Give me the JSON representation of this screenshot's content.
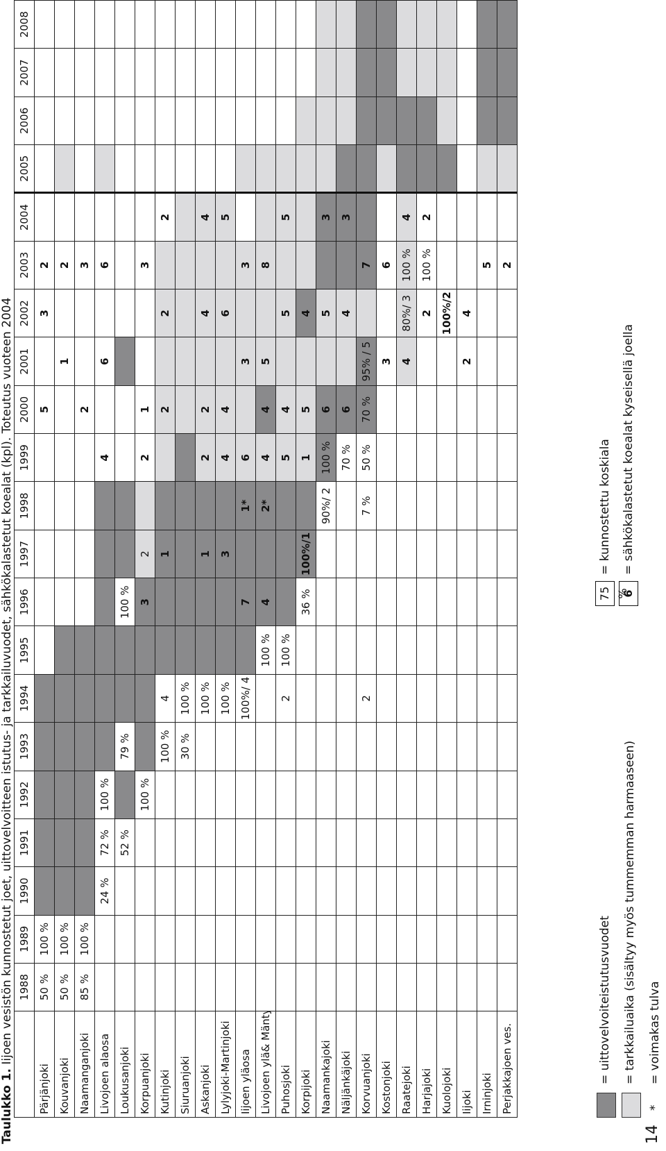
{
  "page_number": "14",
  "caption": {
    "label": "Taulukko 1.",
    "text": " Iijoen vesistön kunnostetut joet, uittovelvoitteen istutus- ja tarkkailuvuodet, sähkökalastetut koealat (kpl). Toteutus vuoteen 2004"
  },
  "table": {
    "years": [
      "1988",
      "1989",
      "1990",
      "1991",
      "1992",
      "1993",
      "1994",
      "1995",
      "1996",
      "1997",
      "1998",
      "1999",
      "2000",
      "2001",
      "2002",
      "2003",
      "2004",
      "2005",
      "2006",
      "2007",
      "2008"
    ],
    "rows": [
      {
        "name": "Pärjänjoki",
        "cells": [
          {
            "v": "50 %"
          },
          {
            "v": "100 %"
          },
          {
            "f": "u"
          },
          {
            "f": "u"
          },
          {
            "f": "u"
          },
          {
            "f": "u"
          },
          {
            "f": "u"
          },
          {},
          {},
          {},
          {},
          {},
          {
            "v": "5",
            "b": 1
          },
          {},
          {
            "v": "3",
            "b": 1
          },
          {
            "v": "2",
            "b": 1
          },
          {},
          {},
          {},
          {},
          {}
        ]
      },
      {
        "name": "Kouvanjoki",
        "cells": [
          {
            "v": "50 %"
          },
          {
            "v": "100 %"
          },
          {
            "f": "u"
          },
          {
            "f": "u"
          },
          {
            "f": "u"
          },
          {
            "f": "u"
          },
          {
            "f": "u"
          },
          {
            "f": "u"
          },
          {},
          {},
          {},
          {},
          {},
          {
            "v": "1",
            "b": 1
          },
          {},
          {
            "v": "2",
            "b": 1
          },
          {},
          {
            "f": "t"
          },
          {},
          {},
          {}
        ]
      },
      {
        "name": "Naamanganjoki",
        "cells": [
          {
            "v": "85 %"
          },
          {
            "v": "100 %"
          },
          {
            "f": "u"
          },
          {
            "f": "u"
          },
          {
            "f": "u"
          },
          {
            "f": "u"
          },
          {
            "f": "u"
          },
          {
            "f": "u"
          },
          {},
          {},
          {},
          {},
          {
            "v": "2",
            "b": 1
          },
          {},
          {},
          {
            "v": "3",
            "b": 1
          },
          {},
          {},
          {},
          {},
          {}
        ]
      },
      {
        "name": "Livojoen alaosa",
        "cells": [
          {},
          {},
          {
            "v": "24 %"
          },
          {
            "v": "72 %"
          },
          {
            "v": "100 %"
          },
          {
            "f": "u"
          },
          {
            "f": "u"
          },
          {
            "f": "u"
          },
          {
            "f": "u"
          },
          {
            "f": "u"
          },
          {
            "f": "u"
          },
          {
            "v": "4",
            "b": 1
          },
          {},
          {
            "v": "6",
            "b": 1
          },
          {},
          {
            "v": "6",
            "b": 1
          },
          {},
          {
            "f": "t"
          },
          {},
          {},
          {}
        ]
      },
      {
        "name": "Loukusanjoki",
        "cells": [
          {},
          {},
          {},
          {
            "v": "52 %"
          },
          {
            "f": "u"
          },
          {
            "v": "79 %"
          },
          {
            "f": "u"
          },
          {
            "f": "u"
          },
          {
            "v": "100 %"
          },
          {
            "f": "u"
          },
          {
            "f": "u"
          },
          {},
          {},
          {
            "f": "u"
          },
          {},
          {},
          {},
          {},
          {},
          {},
          {}
        ]
      },
      {
        "name": "Korpuanjoki",
        "cells": [
          {},
          {},
          {},
          {},
          {
            "v": "100 %"
          },
          {
            "f": "u"
          },
          {
            "f": "u"
          },
          {
            "f": "u"
          },
          {
            "v": "3",
            "b": 1,
            "f": "u"
          },
          {
            "v": "2",
            "f": "t"
          },
          {
            "f": "t"
          },
          {
            "v": "2",
            "b": 1
          },
          {
            "v": "1",
            "b": 1
          },
          {},
          {},
          {
            "v": "3",
            "b": 1
          },
          {},
          {},
          {},
          {},
          {}
        ]
      },
      {
        "name": "Kutinjoki",
        "cells": [
          {},
          {},
          {},
          {},
          {},
          {
            "v": "100 %"
          },
          {
            "v": "4"
          },
          {
            "f": "u"
          },
          {
            "f": "u"
          },
          {
            "v": "1",
            "b": 1,
            "f": "u"
          },
          {
            "f": "u"
          },
          {
            "f": "t"
          },
          {
            "v": "2",
            "b": 1,
            "f": "t"
          },
          {
            "f": "t"
          },
          {
            "v": "2",
            "b": 1,
            "f": "t"
          },
          {
            "f": "t"
          },
          {
            "v": "2",
            "b": 1
          },
          {},
          {},
          {},
          {}
        ]
      },
      {
        "name": "Siuruanjoki",
        "cells": [
          {},
          {},
          {},
          {},
          {},
          {
            "v": "30 %"
          },
          {
            "v": "100 %"
          },
          {
            "f": "u"
          },
          {
            "f": "u"
          },
          {
            "f": "u"
          },
          {
            "f": "u"
          },
          {
            "f": "u"
          },
          {
            "f": "t"
          },
          {
            "f": "t"
          },
          {
            "f": "t"
          },
          {
            "f": "t"
          },
          {
            "f": "t"
          },
          {},
          {},
          {},
          {}
        ]
      },
      {
        "name": "Askanjoki",
        "cells": [
          {},
          {},
          {},
          {},
          {},
          {},
          {
            "v": "100 %"
          },
          {
            "f": "u"
          },
          {
            "f": "u"
          },
          {
            "v": "1",
            "b": 1,
            "f": "u"
          },
          {
            "f": "u"
          },
          {
            "v": "2",
            "b": 1,
            "f": "t"
          },
          {
            "v": "2",
            "b": 1,
            "f": "t"
          },
          {
            "f": "t"
          },
          {
            "v": "4",
            "b": 1,
            "f": "t"
          },
          {
            "f": "t"
          },
          {
            "v": "4",
            "b": 1,
            "f": "t"
          },
          {},
          {},
          {},
          {}
        ]
      },
      {
        "name": "Lylyjoki-Martinjoki",
        "cells": [
          {},
          {},
          {},
          {},
          {},
          {},
          {
            "v": "100 %"
          },
          {
            "f": "u"
          },
          {
            "f": "u"
          },
          {
            "v": "3",
            "b": 1,
            "f": "u"
          },
          {
            "f": "u"
          },
          {
            "v": "4",
            "b": 1,
            "f": "t"
          },
          {
            "v": "4",
            "b": 1,
            "f": "t"
          },
          {
            "f": "t"
          },
          {
            "v": "6",
            "b": 1,
            "f": "t"
          },
          {
            "f": "t"
          },
          {
            "v": "5",
            "b": 1,
            "f": "t"
          },
          {},
          {},
          {},
          {}
        ]
      },
      {
        "name": "Iijoen yläosa",
        "cells": [
          {},
          {},
          {},
          {},
          {},
          {},
          {
            "v": "100%/ 4"
          },
          {
            "f": "u"
          },
          {
            "v": "7",
            "b": 1,
            "f": "u"
          },
          {
            "f": "u"
          },
          {
            "v": "1*",
            "b": 1,
            "f": "u"
          },
          {
            "v": "6",
            "b": 1,
            "f": "t"
          },
          {
            "f": "t"
          },
          {
            "v": "3",
            "b": 1,
            "f": "t"
          },
          {
            "f": "t"
          },
          {
            "v": "3",
            "b": 1,
            "f": "t"
          },
          {},
          {
            "f": "t"
          },
          {},
          {},
          {}
        ]
      },
      {
        "name": "Livojoen ylä& Mäntyjoki",
        "cells": [
          {},
          {},
          {},
          {},
          {},
          {},
          {},
          {
            "v": "100 %"
          },
          {
            "v": "4",
            "b": 1,
            "f": "u"
          },
          {
            "f": "u"
          },
          {
            "v": "2*",
            "b": 1,
            "f": "u"
          },
          {
            "v": "4",
            "b": 1,
            "f": "t"
          },
          {
            "v": "4",
            "b": 1,
            "f": "u"
          },
          {
            "v": "5",
            "b": 1,
            "f": "t"
          },
          {
            "f": "t"
          },
          {
            "v": "8",
            "b": 1,
            "f": "t"
          },
          {
            "f": "t"
          },
          {
            "f": "t"
          },
          {},
          {},
          {}
        ]
      },
      {
        "name": "Puhosjoki",
        "cells": [
          {},
          {},
          {},
          {},
          {},
          {},
          {
            "v": "2"
          },
          {
            "v": "100 %"
          },
          {
            "f": "u"
          },
          {
            "f": "u"
          },
          {
            "f": "u"
          },
          {
            "v": "5",
            "b": 1,
            "f": "t"
          },
          {
            "v": "4",
            "b": 1,
            "f": "t"
          },
          {
            "f": "t"
          },
          {
            "v": "5",
            "b": 1,
            "f": "t"
          },
          {
            "f": "t"
          },
          {
            "v": "5",
            "b": 1,
            "f": "t"
          },
          {
            "f": "t"
          },
          {},
          {},
          {}
        ]
      },
      {
        "name": "Korpijoki",
        "cells": [
          {},
          {},
          {},
          {},
          {},
          {},
          {},
          {},
          {
            "v": "36 %"
          },
          {
            "v": "100%/1",
            "b": 1,
            "f": "u"
          },
          {
            "f": "u"
          },
          {
            "v": "1",
            "b": 1,
            "f": "t"
          },
          {
            "v": "5",
            "b": 1,
            "f": "t"
          },
          {
            "f": "t"
          },
          {
            "v": "4",
            "b": 1,
            "f": "u"
          },
          {
            "f": "t"
          },
          {
            "f": "t"
          },
          {
            "f": "t"
          },
          {
            "f": "t"
          },
          {},
          {}
        ]
      },
      {
        "name": "Naamankajoki",
        "cells": [
          {},
          {},
          {},
          {},
          {},
          {},
          {},
          {},
          {},
          {},
          {
            "v": "90%/ 2"
          },
          {
            "v": "100 %",
            "f": "u"
          },
          {
            "v": "6",
            "b": 1,
            "f": "u"
          },
          {
            "f": "t"
          },
          {
            "v": "5",
            "b": 1,
            "f": "t"
          },
          {
            "f": "u"
          },
          {
            "v": "3",
            "b": 1,
            "f": "u"
          },
          {
            "f": "t"
          },
          {
            "f": "t"
          },
          {
            "f": "t"
          },
          {
            "f": "t"
          }
        ]
      },
      {
        "name": "Näljänkäjoki",
        "cells": [
          {},
          {},
          {},
          {},
          {},
          {},
          {},
          {},
          {},
          {},
          {},
          {
            "v": "70 %"
          },
          {
            "v": "6",
            "b": 1,
            "f": "u"
          },
          {
            "f": "t"
          },
          {
            "v": "4",
            "b": 1,
            "f": "t"
          },
          {
            "f": "u"
          },
          {
            "v": "3",
            "b": 1,
            "f": "u"
          },
          {
            "f": "u"
          },
          {
            "f": "t"
          },
          {
            "f": "t"
          },
          {
            "f": "t"
          }
        ]
      },
      {
        "name": "Korvuanjoki",
        "cells": [
          {},
          {},
          {},
          {},
          {},
          {},
          {
            "v": "2"
          },
          {},
          {},
          {},
          {
            "v": "7 %"
          },
          {
            "v": "50 %"
          },
          {
            "v": "70 %",
            "f": "u"
          },
          {
            "v": "95% / 5",
            "f": "u"
          },
          {
            "f": "t"
          },
          {
            "v": "7",
            "b": 1,
            "f": "u"
          },
          {
            "f": "u"
          },
          {
            "f": "u"
          },
          {
            "f": "u"
          },
          {
            "f": "u"
          },
          {
            "f": "u"
          }
        ]
      },
      {
        "name": "Kostonjoki",
        "cells": [
          {},
          {},
          {},
          {},
          {},
          {},
          {},
          {},
          {},
          {},
          {},
          {},
          {},
          {
            "v": "3",
            "b": 1
          },
          {},
          {
            "v": "6",
            "b": 1
          },
          {},
          {
            "f": "t"
          },
          {
            "f": "u"
          },
          {
            "f": "u"
          },
          {
            "f": "u"
          }
        ]
      },
      {
        "name": "Raatejoki",
        "cells": [
          {},
          {},
          {},
          {},
          {},
          {},
          {},
          {},
          {},
          {},
          {},
          {},
          {},
          {
            "v": "4",
            "b": 1,
            "f": "t"
          },
          {
            "v": "80%/ 3",
            "f": "t"
          },
          {
            "v": "100 %",
            "f": "t"
          },
          {
            "v": "4",
            "b": 1,
            "f": "t"
          },
          {
            "f": "u"
          },
          {
            "f": "u"
          },
          {
            "f": "t"
          },
          {
            "f": "t"
          }
        ]
      },
      {
        "name": "Harjajoki",
        "cells": [
          {},
          {},
          {},
          {},
          {},
          {},
          {},
          {},
          {},
          {},
          {},
          {},
          {},
          {},
          {
            "v": "2",
            "b": 1
          },
          {
            "v": "100 %"
          },
          {
            "v": "2",
            "b": 1
          },
          {
            "f": "u"
          },
          {
            "f": "u"
          },
          {
            "f": "t"
          },
          {
            "f": "t"
          }
        ]
      },
      {
        "name": "Kuolojoki",
        "cells": [
          {},
          {},
          {},
          {},
          {},
          {},
          {},
          {},
          {},
          {},
          {},
          {},
          {},
          {},
          {
            "v": "100%/2",
            "b": 1
          },
          {},
          {},
          {
            "f": "u"
          },
          {
            "f": "t"
          },
          {
            "f": "t"
          },
          {
            "f": "t"
          }
        ]
      },
      {
        "name": "Iijoki",
        "cells": [
          {},
          {},
          {},
          {},
          {},
          {},
          {},
          {},
          {},
          {},
          {},
          {},
          {},
          {
            "v": "2",
            "b": 1
          },
          {
            "v": "4",
            "b": 1
          },
          {},
          {},
          {},
          {},
          {},
          {}
        ]
      },
      {
        "name": "Irninjoki",
        "cells": [
          {},
          {},
          {},
          {},
          {},
          {},
          {},
          {},
          {},
          {},
          {},
          {},
          {},
          {},
          {},
          {
            "v": "5",
            "b": 1
          },
          {},
          {
            "f": "t"
          },
          {
            "f": "u"
          },
          {
            "f": "u"
          },
          {
            "f": "u"
          }
        ]
      },
      {
        "name": "Perjakkajoen ves.",
        "cells": [
          {},
          {},
          {},
          {},
          {},
          {},
          {},
          {},
          {},
          {},
          {},
          {},
          {},
          {},
          {},
          {
            "v": "2",
            "b": 1
          },
          {},
          {
            "f": "t"
          },
          {
            "f": "u"
          },
          {
            "f": "u"
          },
          {
            "f": "u"
          }
        ]
      }
    ]
  },
  "legend": {
    "dark_label": "= uittovelvoiteistutusvuodet",
    "light_label": "= tarkkailuaika (sisältyy myös tummemman harmaaseen)",
    "star_symbol": "*",
    "star_label": "= voimakas tulva",
    "percent_example": "75 %",
    "percent_label": "= kunnostettu koskiala",
    "count_example": "6",
    "count_label": "= sähkökalastetut koealat  kyseisellä joella"
  },
  "colors": {
    "dark": "#8a8a8c",
    "light": "#dcdcde"
  }
}
